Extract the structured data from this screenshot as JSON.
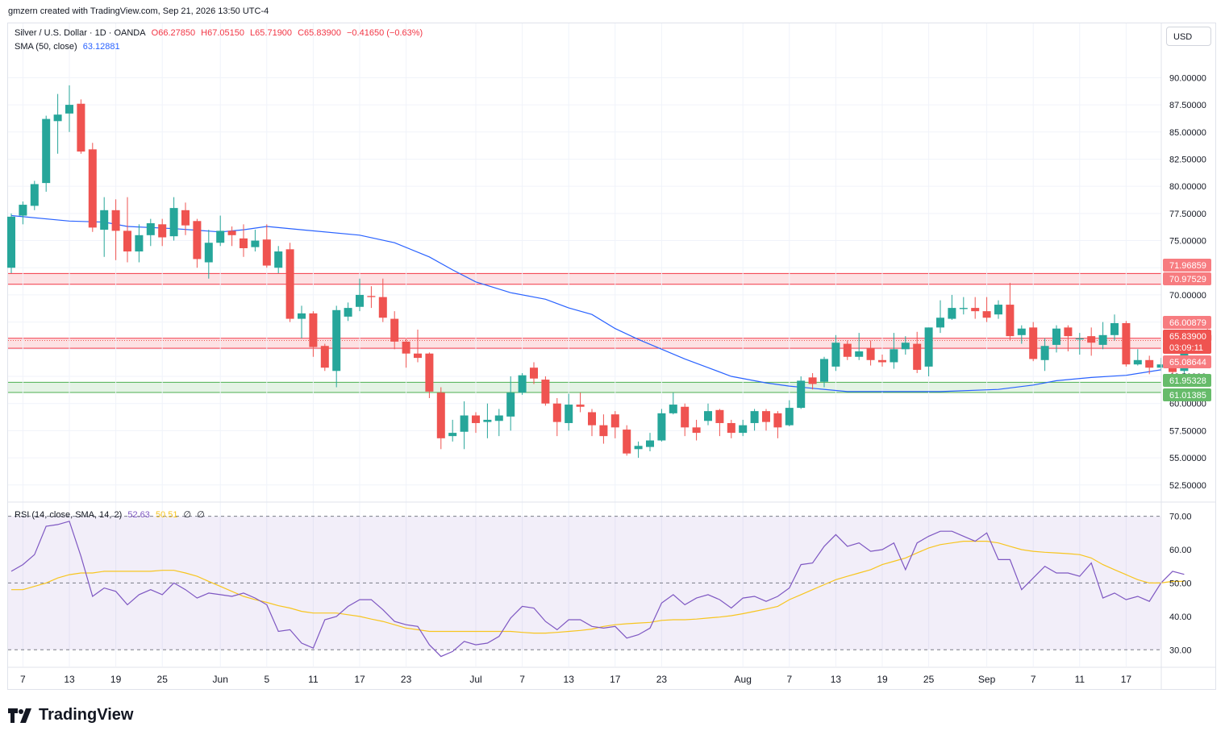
{
  "header": {
    "byline": "gmzern created with TradingView.com, Sep 21, 2026 13:50 UTC-4"
  },
  "legend": {
    "symbol": "Silver / U.S. Dollar · 1D · OANDA",
    "open": "O66.27850",
    "high": "H67.05150",
    "low": "L65.71900",
    "close": "C65.83900",
    "change": "−0.41650 (−0.63%)",
    "sma_label": "SMA (50, close)",
    "sma_value": "63.12881",
    "rsi_label": "RSI (14, close, SMA, 14, 2)",
    "rsi_value": "52.63",
    "rsi_ma_value": "50.51",
    "rsi_extra1": "∅",
    "rsi_extra2": "∅"
  },
  "currency_button": "USD",
  "brand": {
    "name": "TradingView",
    "icon": "tradingview-logo-icon"
  },
  "colors": {
    "up": "#26a69a",
    "down": "#ef5350",
    "sma": "#2962ff",
    "rsi": "#7e57c2",
    "rsi_ma": "#f7c51f",
    "resistance_zone": "#f23645",
    "support_zone": "#4caf50"
  },
  "chart_data": {
    "type": "candlestick",
    "price_axis": {
      "ylim": [
        51,
        95
      ],
      "ticks": [
        "52.50000",
        "55.00000",
        "57.50000",
        "60.00000",
        "62.50000",
        "65.00000",
        "67.50000",
        "70.00000",
        "72.50000",
        "75.00000",
        "77.50000",
        "80.00000",
        "82.50000",
        "85.00000",
        "87.50000",
        "90.00000"
      ],
      "tick_values": [
        52.5,
        55,
        57.5,
        60,
        62.5,
        65,
        67.5,
        70,
        72.5,
        75,
        77.5,
        80,
        82.5,
        85,
        87.5,
        90
      ]
    },
    "x_axis": {
      "labels": [
        {
          "i": 1,
          "t": "7"
        },
        {
          "i": 5,
          "t": "13"
        },
        {
          "i": 9,
          "t": "19"
        },
        {
          "i": 13,
          "t": "25"
        },
        {
          "i": 18,
          "t": "Jun"
        },
        {
          "i": 22,
          "t": "5"
        },
        {
          "i": 26,
          "t": "11"
        },
        {
          "i": 30,
          "t": "17"
        },
        {
          "i": 34,
          "t": "23"
        },
        {
          "i": 40,
          "t": "Jul"
        },
        {
          "i": 44,
          "t": "7"
        },
        {
          "i": 48,
          "t": "13"
        },
        {
          "i": 52,
          "t": "17"
        },
        {
          "i": 56,
          "t": "23"
        },
        {
          "i": 63,
          "t": "Aug"
        },
        {
          "i": 67,
          "t": "7"
        },
        {
          "i": 71,
          "t": "13"
        },
        {
          "i": 75,
          "t": "19"
        },
        {
          "i": 79,
          "t": "25"
        },
        {
          "i": 84,
          "t": "Sep"
        },
        {
          "i": 88,
          "t": "7"
        },
        {
          "i": 92,
          "t": "11"
        },
        {
          "i": 96,
          "t": "17"
        }
      ]
    },
    "candles": [
      [
        72.5,
        77.2,
        77.5,
        72.0
      ],
      [
        77.3,
        78.3,
        78.6,
        76.5
      ],
      [
        78.2,
        80.2,
        80.5,
        77.8
      ],
      [
        80.3,
        86.2,
        86.5,
        79.5
      ],
      [
        86.0,
        86.6,
        88.5,
        83.0
      ],
      [
        86.7,
        87.5,
        89.3,
        85.0
      ],
      [
        87.6,
        83.2,
        88.0,
        83.0
      ],
      [
        83.4,
        76.2,
        84.0,
        75.8
      ],
      [
        76.0,
        77.8,
        79.0,
        73.5
      ],
      [
        77.8,
        75.9,
        78.8,
        73.2
      ],
      [
        75.9,
        74.0,
        79.0,
        73.0
      ],
      [
        74.0,
        75.5,
        76.5,
        73.0
      ],
      [
        75.5,
        76.6,
        77.0,
        74.5
      ],
      [
        76.5,
        75.3,
        77.0,
        74.5
      ],
      [
        75.4,
        78.0,
        79.0,
        75.0
      ],
      [
        77.8,
        76.4,
        78.5,
        75.5
      ],
      [
        76.8,
        73.3,
        77.0,
        72.5
      ],
      [
        73.0,
        74.8,
        76.0,
        71.5
      ],
      [
        74.8,
        75.9,
        77.3,
        74.5
      ],
      [
        75.9,
        75.5,
        76.3,
        74.5
      ],
      [
        75.2,
        74.3,
        76.5,
        73.5
      ],
      [
        74.4,
        75.0,
        76.0,
        74.0
      ],
      [
        75.1,
        72.7,
        76.5,
        72.5
      ],
      [
        72.5,
        74.0,
        74.5,
        72.0
      ],
      [
        74.2,
        67.8,
        74.8,
        67.5
      ],
      [
        67.8,
        68.3,
        69.0,
        66.0
      ],
      [
        68.3,
        65.2,
        68.5,
        64.3
      ],
      [
        65.3,
        63.3,
        65.5,
        63.0
      ],
      [
        63.0,
        68.6,
        69.0,
        61.5
      ],
      [
        68.0,
        68.8,
        69.3,
        67.6
      ],
      [
        68.9,
        70.0,
        71.5,
        68.5
      ],
      [
        69.9,
        69.8,
        70.8,
        68.8
      ],
      [
        69.8,
        67.9,
        71.5,
        67.5
      ],
      [
        67.8,
        65.7,
        68.5,
        65.0
      ],
      [
        65.7,
        64.6,
        66.0,
        63.3
      ],
      [
        64.6,
        64.2,
        66.8,
        63.8
      ],
      [
        64.6,
        61.1,
        64.7,
        60.5
      ],
      [
        61.0,
        56.8,
        61.5,
        55.8
      ],
      [
        57.0,
        57.3,
        58.5,
        56.5
      ],
      [
        57.4,
        58.9,
        60.2,
        55.8
      ],
      [
        58.9,
        58.2,
        59.2,
        57.3
      ],
      [
        58.3,
        58.5,
        60.0,
        56.8
      ],
      [
        58.4,
        58.9,
        59.5,
        57.0
      ],
      [
        58.8,
        61.0,
        62.5,
        57.5
      ],
      [
        61.0,
        62.6,
        62.8,
        60.8
      ],
      [
        63.3,
        62.3,
        63.8,
        61.8
      ],
      [
        62.2,
        60.0,
        62.5,
        59.8
      ],
      [
        60.0,
        58.3,
        60.5,
        57.0
      ],
      [
        58.2,
        59.9,
        60.9,
        57.5
      ],
      [
        59.9,
        59.7,
        61.0,
        59.2
      ],
      [
        59.2,
        58.0,
        59.5,
        57.0
      ],
      [
        58.0,
        57.0,
        59.0,
        56.3
      ],
      [
        59.0,
        57.8,
        59.3,
        56.8
      ],
      [
        57.6,
        55.4,
        58.0,
        55.2
      ],
      [
        55.8,
        56.1,
        56.5,
        55.0
      ],
      [
        56.0,
        56.6,
        57.3,
        55.6
      ],
      [
        56.6,
        59.1,
        59.5,
        56.5
      ],
      [
        59.1,
        59.9,
        61.0,
        59.0
      ],
      [
        59.7,
        57.8,
        60.0,
        57.0
      ],
      [
        57.8,
        57.3,
        58.5,
        56.6
      ],
      [
        58.4,
        59.3,
        60.0,
        58.0
      ],
      [
        59.4,
        58.2,
        59.5,
        57.0
      ],
      [
        58.2,
        57.3,
        58.5,
        56.8
      ],
      [
        57.3,
        58.0,
        58.5,
        57.0
      ],
      [
        58.2,
        59.3,
        59.5,
        57.5
      ],
      [
        59.3,
        58.3,
        59.5,
        57.5
      ],
      [
        59.1,
        57.8,
        59.3,
        56.8
      ],
      [
        58.0,
        59.6,
        60.3,
        57.9
      ],
      [
        59.6,
        62.1,
        62.5,
        59.5
      ],
      [
        62.4,
        61.8,
        62.8,
        61.3
      ],
      [
        62.0,
        64.1,
        64.3,
        61.5
      ],
      [
        63.4,
        65.6,
        66.3,
        63.0
      ],
      [
        65.5,
        64.3,
        65.8,
        64.0
      ],
      [
        64.3,
        64.8,
        66.5,
        64.0
      ],
      [
        65.1,
        64.0,
        65.8,
        63.5
      ],
      [
        64.0,
        63.8,
        64.5,
        63.4
      ],
      [
        63.8,
        65.0,
        66.5,
        63.2
      ],
      [
        65.0,
        65.6,
        66.2,
        64.5
      ],
      [
        65.5,
        63.1,
        66.6,
        62.8
      ],
      [
        63.4,
        67.0,
        67.0,
        62.5
      ],
      [
        67.0,
        67.9,
        69.5,
        66.5
      ],
      [
        67.8,
        68.8,
        70.0,
        67.7
      ],
      [
        68.7,
        68.8,
        69.8,
        68.2
      ],
      [
        68.8,
        68.5,
        69.8,
        67.8
      ],
      [
        68.5,
        67.9,
        69.8,
        67.5
      ],
      [
        68.2,
        69.1,
        69.5,
        67.8
      ],
      [
        69.1,
        66.2,
        71.1,
        65.8
      ],
      [
        66.3,
        66.9,
        67.2,
        65.5
      ],
      [
        67.0,
        64.1,
        67.5,
        63.9
      ],
      [
        64.0,
        65.3,
        66.0,
        63.0
      ],
      [
        65.4,
        66.9,
        67.2,
        64.7
      ],
      [
        67.0,
        66.2,
        67.2,
        64.8
      ],
      [
        65.9,
        66.0,
        66.5,
        64.5
      ],
      [
        66.2,
        65.6,
        67.0,
        64.4
      ],
      [
        65.4,
        66.3,
        67.5,
        65.0
      ],
      [
        66.3,
        67.4,
        68.2,
        65.8
      ],
      [
        67.4,
        63.6,
        67.6,
        63.4
      ],
      [
        63.6,
        64.0,
        65.0,
        63.5
      ],
      [
        64.0,
        63.3,
        64.4,
        62.7
      ],
      [
        63.3,
        63.6,
        64.2,
        63.0
      ],
      [
        63.6,
        62.9,
        64.0,
        62.6
      ],
      [
        63.0,
        65.1,
        65.4,
        62.7
      ],
      [
        65.1,
        66.3,
        66.8,
        64.8
      ],
      [
        66.3,
        65.8,
        67.0,
        65.7
      ]
    ],
    "sma50": {
      "label": "SMA (50, close)",
      "points": [
        [
          0,
          77.3
        ],
        [
          5,
          76.8
        ],
        [
          8,
          76.7
        ],
        [
          10,
          76.3
        ],
        [
          14,
          76.1
        ],
        [
          18,
          75.8
        ],
        [
          20,
          76.0
        ],
        [
          22,
          76.3
        ],
        [
          25,
          76.0
        ],
        [
          30,
          75.5
        ],
        [
          33,
          74.8
        ],
        [
          36,
          73.5
        ],
        [
          38,
          72.3
        ],
        [
          40,
          71.2
        ],
        [
          43,
          70.2
        ],
        [
          46,
          69.6
        ],
        [
          48,
          68.8
        ],
        [
          50,
          68.2
        ],
        [
          52,
          66.9
        ],
        [
          54,
          65.9
        ],
        [
          56,
          65.0
        ],
        [
          58,
          64.1
        ],
        [
          60,
          63.3
        ],
        [
          62,
          62.5
        ],
        [
          65,
          61.9
        ],
        [
          67,
          61.6
        ],
        [
          69,
          61.4
        ],
        [
          72,
          61.1
        ],
        [
          75,
          61.1
        ],
        [
          80,
          61.1
        ],
        [
          85,
          61.3
        ],
        [
          88,
          61.7
        ],
        [
          90,
          62.1
        ],
        [
          93,
          62.4
        ],
        [
          96,
          62.6
        ],
        [
          99,
          63.1
        ]
      ]
    },
    "zones": [
      {
        "type": "resistance",
        "low": 70.97529,
        "high": 71.96859
      },
      {
        "type": "resistance",
        "low": 65.08644,
        "high": 66.00879
      },
      {
        "type": "support",
        "low": 61.01385,
        "high": 61.95328
      }
    ],
    "price_labels": [
      {
        "text": "71.96859",
        "value": 71.96859,
        "color": "#f77c80"
      },
      {
        "text": "70.97529",
        "value": 70.97529,
        "color": "#f77c80"
      },
      {
        "text": "66.00879",
        "value": 66.00879,
        "color": "#f77c80"
      },
      {
        "text": "65.83900",
        "value": 65.839,
        "color": "#ef5350"
      },
      {
        "text": "03:09:11",
        "value": 64.85,
        "color": "#ef5350"
      },
      {
        "text": "65.08644",
        "value": 65.08644,
        "color": "#f77c80"
      },
      {
        "text": "61.95328",
        "value": 61.95328,
        "color": "#66bb6a"
      },
      {
        "text": "61.01385",
        "value": 61.01385,
        "color": "#66bb6a"
      }
    ],
    "rsi": {
      "label": "RSI (14, close, SMA, 14, 2)",
      "ylim": [
        25,
        74
      ],
      "ticks": [
        "30.00",
        "40.00",
        "50.00",
        "60.00",
        "70.00"
      ],
      "tick_values": [
        30,
        40,
        50,
        60,
        70
      ],
      "band": [
        30,
        70
      ],
      "mid": 50,
      "values": [
        53.5,
        55.5,
        58.5,
        67.0,
        67.5,
        68.5,
        58.0,
        46.0,
        48.5,
        47.5,
        43.5,
        46.5,
        48.0,
        46.5,
        50.0,
        48.0,
        45.5,
        47.0,
        46.5,
        46.0,
        47.0,
        45.5,
        43.5,
        35.5,
        36.0,
        32.0,
        30.5,
        39.0,
        40.0,
        43.0,
        45.0,
        45.0,
        42.0,
        38.5,
        37.5,
        37.0,
        31.5,
        28.0,
        29.5,
        32.5,
        31.5,
        32.0,
        34.0,
        39.5,
        43.0,
        42.5,
        38.5,
        36.0,
        39.0,
        39.0,
        37.0,
        36.5,
        37.0,
        33.5,
        34.5,
        36.5,
        44.0,
        46.5,
        43.5,
        45.5,
        46.5,
        45.0,
        42.5,
        45.5,
        46.0,
        44.5,
        46.0,
        48.5,
        55.5,
        56.0,
        61.0,
        64.5,
        61.0,
        62.0,
        59.5,
        60.0,
        62.0,
        54.0,
        62.0,
        64.0,
        65.5,
        65.5,
        64.0,
        62.5,
        65.0,
        57.0,
        57.0,
        48.0,
        51.5,
        55.0,
        53.0,
        53.0,
        52.0,
        56.0,
        45.5,
        47.0,
        45.0,
        46.0,
        44.5,
        50.0,
        53.5,
        52.6
      ],
      "ma_values": [
        48.0,
        48.0,
        49.0,
        50.0,
        51.5,
        52.5,
        53.0,
        53.0,
        53.5,
        53.5,
        53.5,
        53.5,
        53.5,
        53.8,
        53.8,
        53.0,
        52.0,
        50.5,
        49.0,
        47.5,
        46.0,
        45.0,
        44.2,
        43.2,
        42.5,
        41.5,
        41.0,
        41.0,
        41.0,
        40.5,
        40.0,
        39.2,
        38.5,
        37.5,
        36.5,
        36.0,
        35.5,
        35.5,
        35.5,
        35.5,
        35.5,
        35.5,
        35.5,
        35.5,
        35.2,
        35.0,
        35.0,
        35.2,
        35.5,
        35.8,
        36.2,
        37.0,
        37.5,
        37.8,
        38.0,
        38.2,
        38.8,
        39.0,
        39.0,
        39.2,
        39.5,
        39.8,
        40.2,
        40.8,
        41.5,
        42.2,
        43.0,
        45.0,
        46.5,
        48.0,
        49.5,
        51.0,
        52.0,
        53.0,
        54.0,
        55.5,
        56.5,
        57.5,
        59.0,
        60.5,
        61.5,
        62.0,
        62.5,
        62.5,
        62.5,
        62.0,
        61.0,
        60.0,
        59.5,
        59.2,
        59.0,
        58.8,
        58.5,
        57.5,
        55.5,
        54.0,
        52.5,
        51.0,
        50.0,
        50.0,
        50.5,
        50.5
      ]
    }
  }
}
